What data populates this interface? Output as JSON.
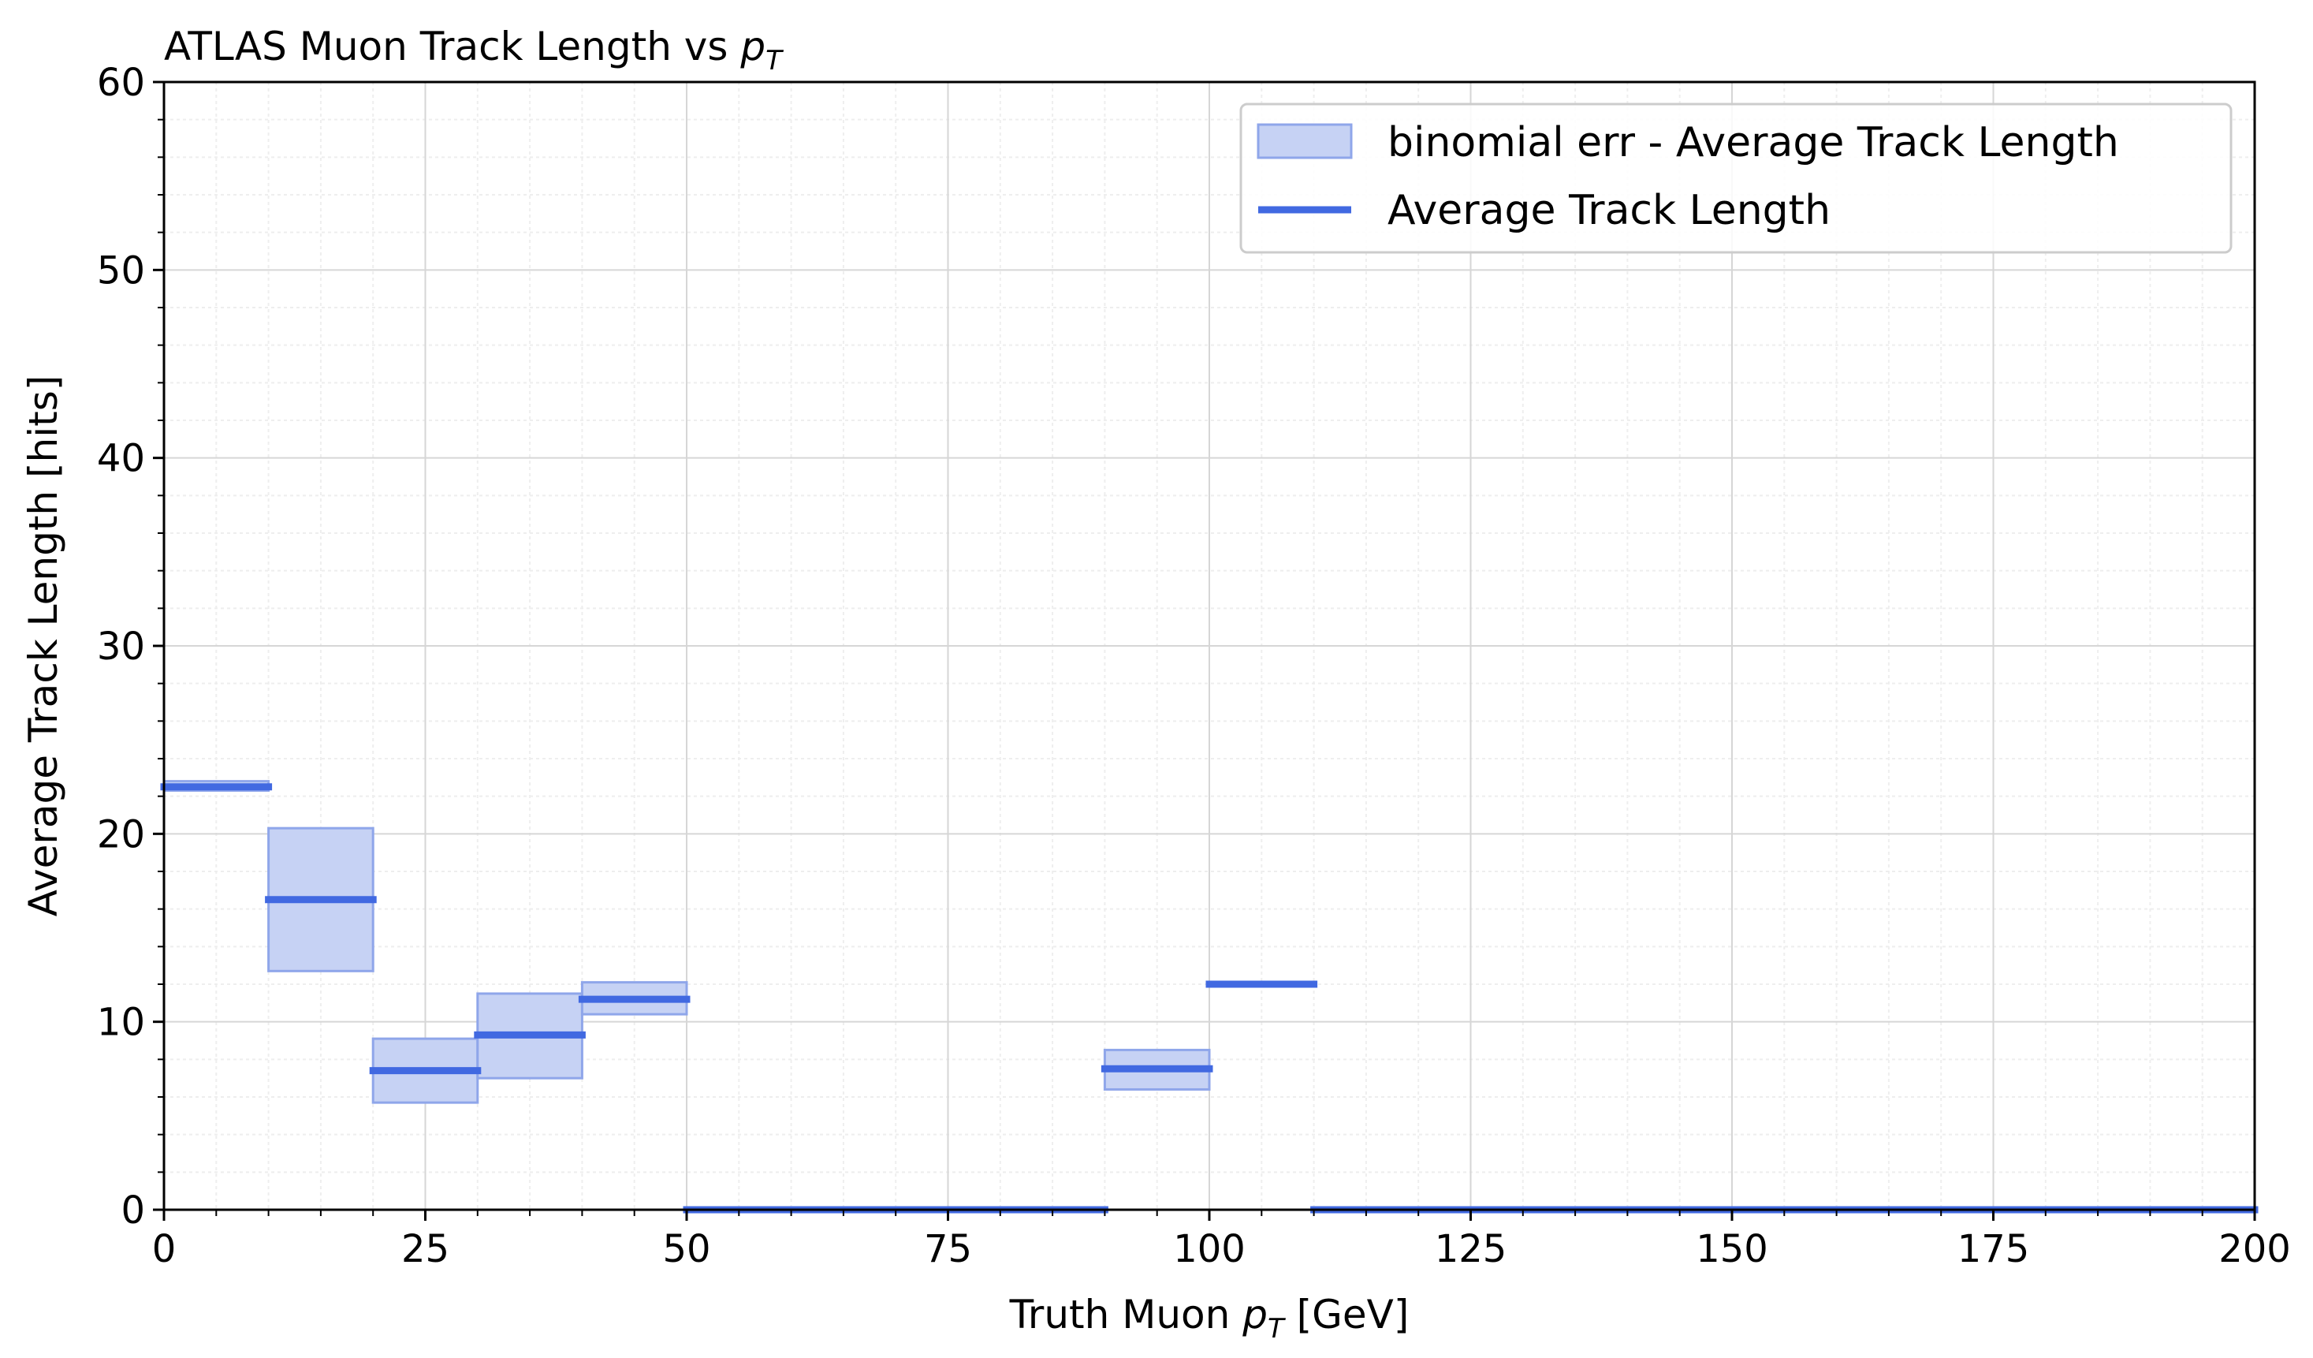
{
  "chart_data": {
    "type": "step",
    "title_prefix": "ATLAS Muon Track Length vs ",
    "title_var": "p",
    "title_sub": "T",
    "xlabel_prefix": "Truth Muon ",
    "xlabel_var": "p",
    "xlabel_sub": "T",
    "xlabel_suffix": " [GeV]",
    "ylabel": "Average Track Length [hits]",
    "xlim": [
      0,
      200
    ],
    "ylim": [
      0,
      60
    ],
    "xticks": [
      0,
      25,
      50,
      75,
      100,
      125,
      150,
      175,
      200
    ],
    "yticks": [
      0,
      10,
      20,
      30,
      40,
      50,
      60
    ],
    "grid": true,
    "minor_grid": true,
    "legend_position": "top-right",
    "colors": {
      "line": "#4169e1",
      "band_fill": "#c6d2f4",
      "band_edge": "#8fa6ea"
    },
    "legend": [
      {
        "label": "binomial err - Average Track Length",
        "kind": "band"
      },
      {
        "label": "Average Track Length",
        "kind": "line"
      }
    ],
    "series": [
      {
        "name": "Average Track Length",
        "bins": [
          {
            "lo": 0,
            "hi": 10,
            "value": 22.5,
            "err_lo": 22.3,
            "err_hi": 22.8
          },
          {
            "lo": 10,
            "hi": 20,
            "value": 16.5,
            "err_lo": 12.7,
            "err_hi": 20.3
          },
          {
            "lo": 20,
            "hi": 30,
            "value": 7.4,
            "err_lo": 5.7,
            "err_hi": 9.1
          },
          {
            "lo": 30,
            "hi": 40,
            "value": 9.3,
            "err_lo": 7.0,
            "err_hi": 11.5
          },
          {
            "lo": 40,
            "hi": 50,
            "value": 11.2,
            "err_lo": 10.4,
            "err_hi": 12.1
          },
          {
            "lo": 50,
            "hi": 60,
            "value": 0,
            "err_lo": 0,
            "err_hi": 0
          },
          {
            "lo": 60,
            "hi": 70,
            "value": 0,
            "err_lo": 0,
            "err_hi": 0
          },
          {
            "lo": 70,
            "hi": 80,
            "value": 0,
            "err_lo": 0,
            "err_hi": 0
          },
          {
            "lo": 80,
            "hi": 90,
            "value": 0,
            "err_lo": 0,
            "err_hi": 0
          },
          {
            "lo": 90,
            "hi": 100,
            "value": 7.5,
            "err_lo": 6.4,
            "err_hi": 8.5
          },
          {
            "lo": 100,
            "hi": 110,
            "value": 12.0,
            "err_lo": 12.0,
            "err_hi": 12.0
          },
          {
            "lo": 110,
            "hi": 120,
            "value": 0,
            "err_lo": 0,
            "err_hi": 0
          },
          {
            "lo": 120,
            "hi": 130,
            "value": 0,
            "err_lo": 0,
            "err_hi": 0
          },
          {
            "lo": 130,
            "hi": 140,
            "value": 0,
            "err_lo": 0,
            "err_hi": 0
          },
          {
            "lo": 140,
            "hi": 150,
            "value": 0,
            "err_lo": 0,
            "err_hi": 0
          },
          {
            "lo": 150,
            "hi": 160,
            "value": 0,
            "err_lo": 0,
            "err_hi": 0
          },
          {
            "lo": 160,
            "hi": 170,
            "value": 0,
            "err_lo": 0,
            "err_hi": 0
          },
          {
            "lo": 170,
            "hi": 180,
            "value": 0,
            "err_lo": 0,
            "err_hi": 0
          },
          {
            "lo": 180,
            "hi": 190,
            "value": 0,
            "err_lo": 0,
            "err_hi": 0
          },
          {
            "lo": 190,
            "hi": 200,
            "value": 0,
            "err_lo": 0,
            "err_hi": 0
          }
        ]
      }
    ]
  }
}
